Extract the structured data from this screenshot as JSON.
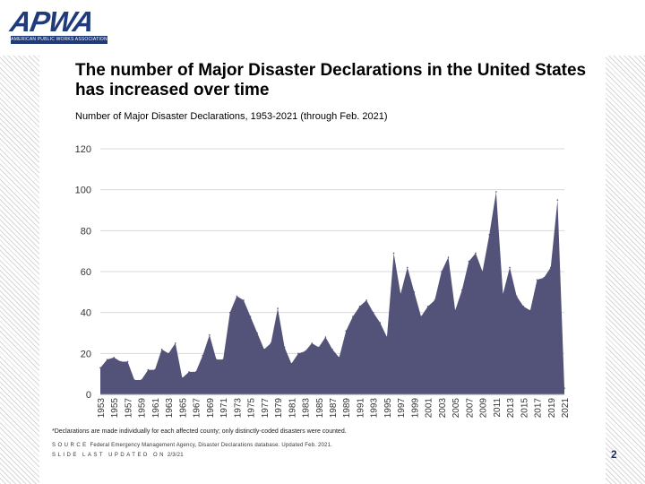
{
  "logo": {
    "name": "APWA",
    "tagline": "AMERICAN PUBLIC WORKS ASSOCIATION"
  },
  "title": "The number of Major Disaster Declarations in the United States has increased over time",
  "footnote": "*Declarations are made individually for each affected county; only distinctly-coded disasters were counted.",
  "source": {
    "label": "SOURCE",
    "text": "Federal Emergency Management Agency, Disaster Declarations database. Updated Feb. 2021."
  },
  "updated": {
    "label": "SLIDE LAST UPDATED ON",
    "date": "2/3/21"
  },
  "page_number": "2",
  "colors": {
    "area": "#535279",
    "grid": "#d9d9d9",
    "logo": "#1f3b7a"
  },
  "chart_data": {
    "type": "area",
    "title": "Number of Major Disaster Declarations, 1953-2021 (through Feb. 2021)",
    "xlabel": "",
    "ylabel": "",
    "ylim": [
      0,
      120
    ],
    "yticks": [
      0,
      20,
      40,
      60,
      80,
      100,
      120
    ],
    "xtick_labels": [
      "1953",
      "1955",
      "1957",
      "1959",
      "1961",
      "1963",
      "1965",
      "1967",
      "1969",
      "1971",
      "1973",
      "1975",
      "1977",
      "1979",
      "1981",
      "1983",
      "1985",
      "1987",
      "1989",
      "1991",
      "1993",
      "1995",
      "1997",
      "1999",
      "2001",
      "2003",
      "2005",
      "2007",
      "2009",
      "2011",
      "2013",
      "2015",
      "2017",
      "2019",
      "2021"
    ],
    "grid": true,
    "legend": "none",
    "series": [
      {
        "x": [
          1953,
          1954,
          1955,
          1956,
          1957,
          1958,
          1959,
          1960,
          1961,
          1962,
          1963,
          1964,
          1965,
          1966,
          1967,
          1968,
          1969,
          1970,
          1971,
          1972,
          1973,
          1974,
          1975,
          1976,
          1977,
          1978,
          1979,
          1980,
          1981,
          1982,
          1983,
          1984,
          1985,
          1986,
          1987,
          1988,
          1989,
          1990,
          1991,
          1992,
          1993,
          1994,
          1995,
          1996,
          1997,
          1998,
          1999,
          2000,
          2001,
          2002,
          2003,
          2004,
          2005,
          2006,
          2007,
          2008,
          2009,
          2010,
          2011,
          2012,
          2013,
          2014,
          2015,
          2016,
          2017,
          2018,
          2019,
          2020,
          2021
        ],
        "values": [
          13,
          17,
          18,
          16,
          16,
          7,
          7,
          12,
          12,
          22,
          20,
          25,
          8,
          11,
          11,
          19,
          29,
          17,
          17,
          40,
          48,
          46,
          38,
          30,
          22,
          25,
          42,
          23,
          15,
          20,
          21,
          25,
          23,
          28,
          22,
          18,
          31,
          38,
          43,
          46,
          40,
          35,
          28,
          69,
          49,
          62,
          50,
          38,
          43,
          46,
          60,
          67,
          41,
          51,
          65,
          69,
          60,
          78,
          99,
          49,
          62,
          48,
          43,
          41,
          56,
          57,
          62,
          95,
          3
        ]
      }
    ]
  }
}
